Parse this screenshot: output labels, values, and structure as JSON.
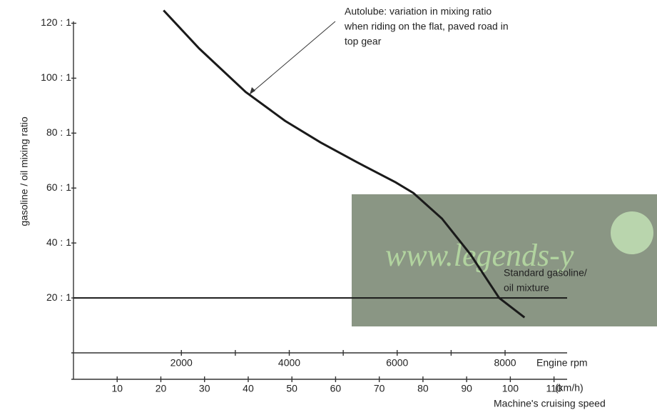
{
  "chart_data": {
    "type": "line",
    "ylabel": "gasoline / oil mixing ratio",
    "xlabel": "Engine rpm",
    "x2label": "(km/h)",
    "x2title": "Machine's cruising speed",
    "xlim": [
      0,
      9150
    ],
    "xticks": [
      2000,
      4000,
      6000,
      8000
    ],
    "xminorticks": [
      3000,
      5000,
      7000
    ],
    "x2lim": [
      0,
      113
    ],
    "x2ticks": [
      10,
      20,
      30,
      40,
      50,
      60,
      70,
      80,
      90,
      100,
      110
    ],
    "ylim": [
      0,
      123
    ],
    "yticks": [
      {
        "value": 20,
        "label": "20 : 1"
      },
      {
        "value": 40,
        "label": "40 : 1"
      },
      {
        "value": 60,
        "label": "60 : 1"
      },
      {
        "value": 80,
        "label": "80 : 1"
      },
      {
        "value": 100,
        "label": "100 : 1"
      },
      {
        "value": 120,
        "label": "120 : 1"
      }
    ],
    "series": [
      {
        "color": "#1a1a1a",
        "x": [
          1670,
          2330,
          3190,
          3920,
          4580,
          5245,
          5970,
          6300,
          6830,
          7360,
          7890,
          8360
        ],
        "values": [
          124.7,
          110.8,
          95,
          84.5,
          76.6,
          69.5,
          62.1,
          58.2,
          48.9,
          35.8,
          20,
          12.9
        ]
      },
      {
        "color": "#1a1a1a",
        "x": [
          0,
          9150
        ],
        "values": [
          20,
          20
        ]
      }
    ],
    "annotations": [
      {
        "lines": [
          "Autolube: variation in mixing ratio",
          "when riding on the flat, paved road in",
          "top gear"
        ]
      },
      {
        "lines": [
          "Standard gasoline/",
          "oil mixture"
        ]
      }
    ],
    "watermark": "www.legends-y"
  }
}
